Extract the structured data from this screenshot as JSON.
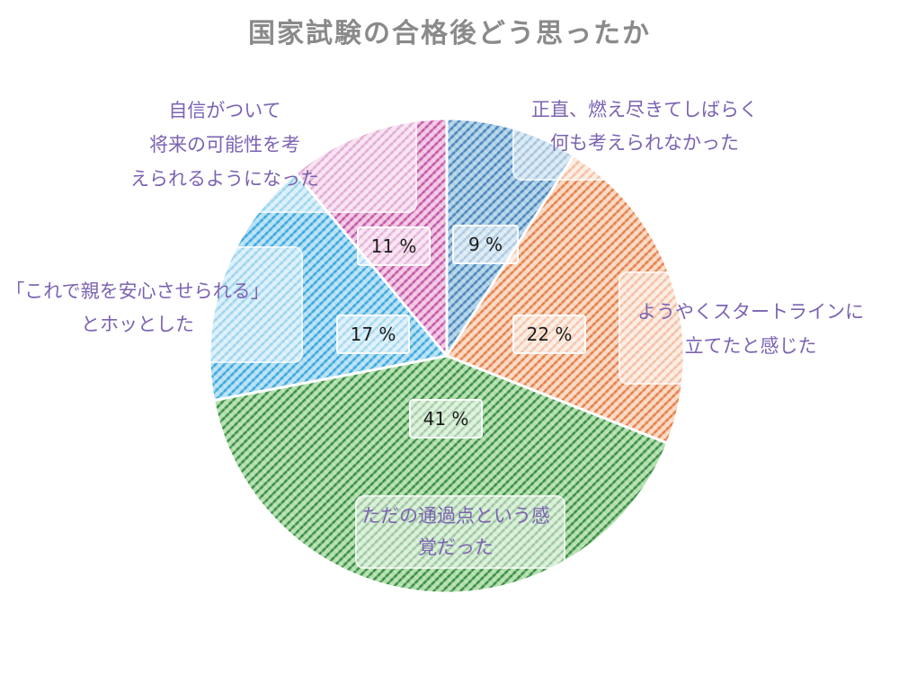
{
  "title": "国家試験の合格後どう思ったか",
  "chart_data": {
    "type": "pie",
    "title": "国家試験の合格後どう思ったか",
    "start_angle": "12-oclock",
    "direction": "clockwise",
    "pattern": "diagonal-hatch",
    "background": "#ffffff",
    "title_color": "#8a8a8a",
    "label_text_color": "#7c63b2",
    "pct_text_color": "#1c1c1c",
    "slices": [
      {
        "label": "正直、燃え尽きてしばらく何も考えられなかった",
        "label_lines": [
          "正直、燃え尽きてしばらく",
          "何も考えられなかった"
        ],
        "value_pct": 9,
        "pct_text": "9 %",
        "color_base": "#aed2e8",
        "color_stripe": "#4f87bb"
      },
      {
        "label": "ようやくスタートラインに立てたと感じた",
        "label_lines": [
          "ようやくスタートラインに",
          "立てたと感じた"
        ],
        "value_pct": 22,
        "pct_text": "22 %",
        "color_base": "#f9d7bf",
        "color_stripe": "#e4814f"
      },
      {
        "label": "ただの通過点という感覚だった",
        "label_lines": [
          "ただの通過点という感",
          "覚だった"
        ],
        "value_pct": 41,
        "pct_text": "41 %",
        "color_base": "#b0dfaa",
        "color_stripe": "#3f8f4a"
      },
      {
        "label": "「これで親を安心させられる」とホッとした",
        "label_lines": [
          "「これで親を安心させられる」",
          "とホッとした"
        ],
        "value_pct": 17,
        "pct_text": "17 %",
        "color_base": "#b3e0f5",
        "color_stripe": "#3fa8dc"
      },
      {
        "label": "自信がついて将来の可能性を考えられるようになった",
        "label_lines": [
          "自信がついて",
          "将来の可能性を考",
          "えられるようになった"
        ],
        "value_pct": 11,
        "pct_text": "11 %",
        "color_base": "#f3c4e3",
        "color_stripe": "#c25ca8"
      }
    ]
  }
}
